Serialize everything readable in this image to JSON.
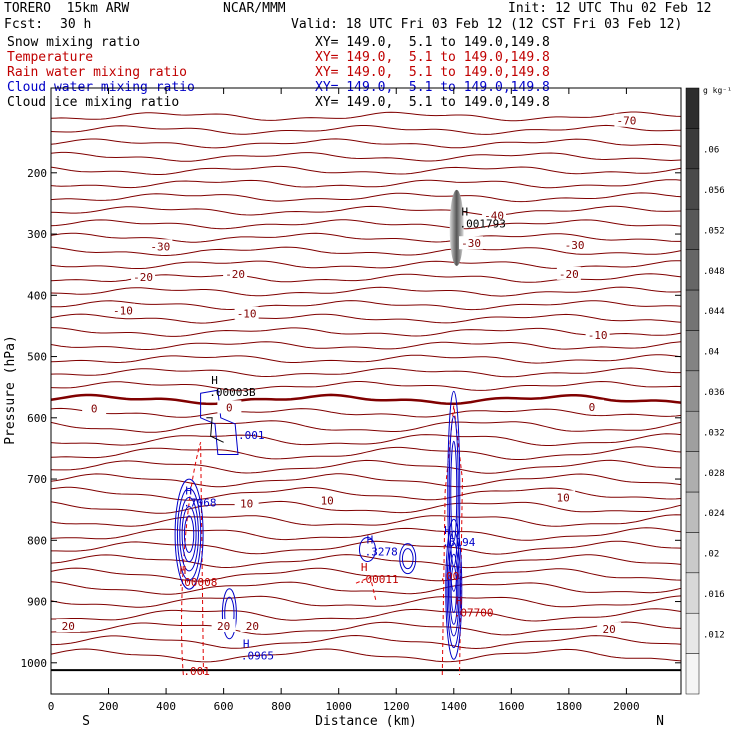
{
  "header": {
    "model": "TORERO  15km ARW",
    "center": "NCAR/MMM",
    "init": "Init: 12 UTC Thu 02 Feb 12",
    "fcst_label": "Fcst:",
    "fcst_value": "30 h",
    "valid": "Valid: 18 UTC Fri 03 Feb 12 (12 CST Fri 03 Feb 12)"
  },
  "fields": [
    {
      "name": "Snow mixing ratio",
      "color": "#000000",
      "xy": "XY= 149.0,  5.1 to 149.0,149.8"
    },
    {
      "name": "Temperature",
      "color": "#c00000",
      "xy": "XY= 149.0,  5.1 to 149.0,149.8"
    },
    {
      "name": "Rain water mixing ratio",
      "color": "#c00000",
      "xy": "XY= 149.0,  5.1 to 149.0,149.8"
    },
    {
      "name": "Cloud water mixing ratio",
      "color": "#0000c8",
      "xy": "XY= 149.0,  5.1 to 149.0,149.8"
    },
    {
      "name": "Cloud ice mixing ratio",
      "color": "#000000",
      "xy": "XY= 149.0,  5.1 to 149.0,149.8"
    }
  ],
  "chart_data": {
    "type": "contour",
    "xlabel": "Distance (km)",
    "ylabel": "Pressure (hPa)",
    "xlim": [
      0,
      2180
    ],
    "ylim": [
      1050,
      100
    ],
    "x_ticks": [
      0,
      200,
      400,
      600,
      800,
      1000,
      1200,
      1400,
      1600,
      1800,
      2000
    ],
    "y_ticks": [
      200,
      300,
      400,
      500,
      600,
      700,
      800,
      900,
      1000
    ],
    "end_labels": {
      "left": "S",
      "right": "N"
    },
    "colorbar": {
      "unit": "g kg⁻¹",
      "ticks": [
        ".012",
        ".016",
        ".02",
        ".024",
        ".028",
        ".032",
        ".036",
        ".04",
        ".044",
        ".048",
        ".052",
        ".056",
        ".06"
      ]
    },
    "temperature_contours": [
      {
        "label": "-70",
        "x": 2000,
        "p": 115
      },
      {
        "label": "-40",
        "x": 1540,
        "p": 270
      },
      {
        "label": "-30",
        "x": 380,
        "p": 320
      },
      {
        "label": "-30",
        "x": 1460,
        "p": 315
      },
      {
        "label": "-30",
        "x": 1820,
        "p": 318
      },
      {
        "label": "-20",
        "x": 320,
        "p": 370
      },
      {
        "label": "-20",
        "x": 640,
        "p": 365
      },
      {
        "label": "-20",
        "x": 1800,
        "p": 365
      },
      {
        "label": "-10",
        "x": 250,
        "p": 425
      },
      {
        "label": "-10",
        "x": 680,
        "p": 430
      },
      {
        "label": "-10",
        "x": 1900,
        "p": 465
      },
      {
        "label": "0",
        "x": 150,
        "p": 585
      },
      {
        "label": "0",
        "x": 620,
        "p": 583
      },
      {
        "label": "0",
        "x": 1880,
        "p": 582
      },
      {
        "label": "10",
        "x": 680,
        "p": 740
      },
      {
        "label": "10",
        "x": 960,
        "p": 735
      },
      {
        "label": "10",
        "x": 1780,
        "p": 730
      },
      {
        "label": "20",
        "x": 60,
        "p": 940
      },
      {
        "label": "20",
        "x": 600,
        "p": 940
      },
      {
        "label": "20",
        "x": 700,
        "p": 940
      },
      {
        "label": "20",
        "x": 1940,
        "p": 945
      }
    ],
    "annotations": [
      {
        "letter": "H",
        "value": ".001793",
        "x": 1420,
        "p": 270,
        "color": "#000000"
      },
      {
        "letter": "H",
        "value": ".00003B",
        "x": 550,
        "p": 545,
        "color": "#000000"
      },
      {
        "letter": "",
        "value": ".001",
        "x": 650,
        "p": 615,
        "color": "#0000c8"
      },
      {
        "letter": "H",
        "value": ".7068",
        "x": 460,
        "p": 725,
        "color": "#0000c8"
      },
      {
        "letter": "H",
        "value": ".00008",
        "x": 440,
        "p": 855,
        "color": "#c00000"
      },
      {
        "letter": "H",
        "value": ".0965",
        "x": 660,
        "p": 975,
        "color": "#0000c8"
      },
      {
        "letter": "H",
        "value": ".3278",
        "x": 1090,
        "p": 805,
        "color": "#0000c8"
      },
      {
        "letter": "H",
        "value": ".00011",
        "x": 1070,
        "p": 850,
        "color": "#c00000"
      },
      {
        "letter": "H",
        "value": ".5194",
        "x": 1360,
        "p": 790,
        "color": "#0000c8"
      },
      {
        "letter": "",
        "value": ".00",
        "x": 1350,
        "p": 845,
        "color": "#c00000"
      },
      {
        "letter": "H",
        "value": ".07700",
        "x": 1400,
        "p": 905,
        "color": "#c00000"
      },
      {
        "letter": "",
        "value": ".001",
        "x": 460,
        "p": 1000,
        "color": "#c00000"
      }
    ]
  }
}
